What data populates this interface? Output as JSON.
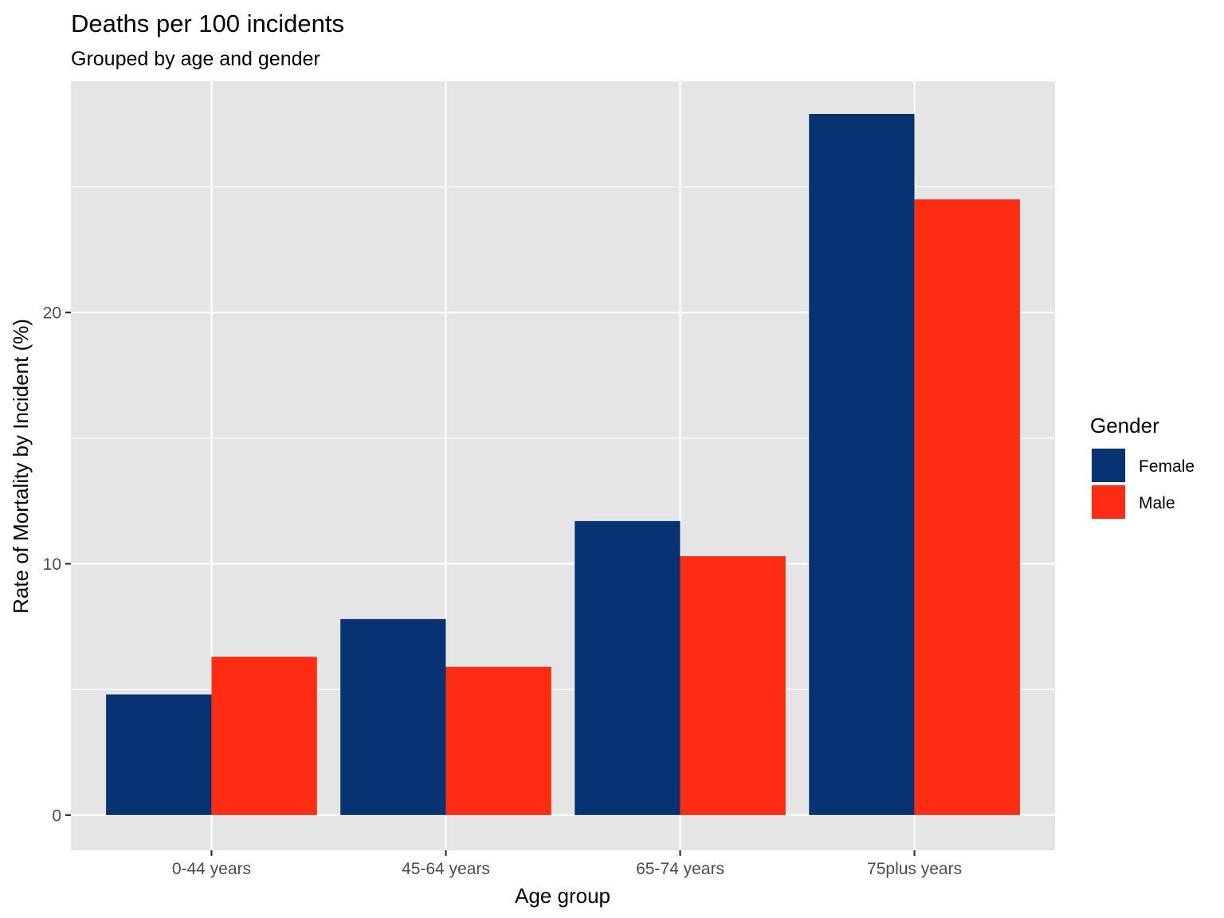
{
  "chart_data": {
    "type": "bar",
    "title": "Deaths per 100 incidents",
    "subtitle": "Grouped by age and gender",
    "xlabel": "Age group",
    "ylabel": "Rate of Mortality by Incident (%)",
    "categories": [
      "0-44 years",
      "45-64 years",
      "65-74 years",
      "75plus years"
    ],
    "series": [
      {
        "name": "Female",
        "color": "#073373",
        "values": [
          4.8,
          7.8,
          11.7,
          27.9
        ]
      },
      {
        "name": "Male",
        "color": "#FD2C12",
        "values": [
          6.3,
          5.9,
          10.3,
          24.5
        ]
      }
    ],
    "ylim": [
      -1.4,
      29.2
    ],
    "yticks": [
      0,
      10,
      20
    ],
    "ytick_labels": [
      "0",
      "10",
      "20"
    ],
    "grid": true,
    "legend": {
      "title": "Gender",
      "position": "right"
    }
  }
}
